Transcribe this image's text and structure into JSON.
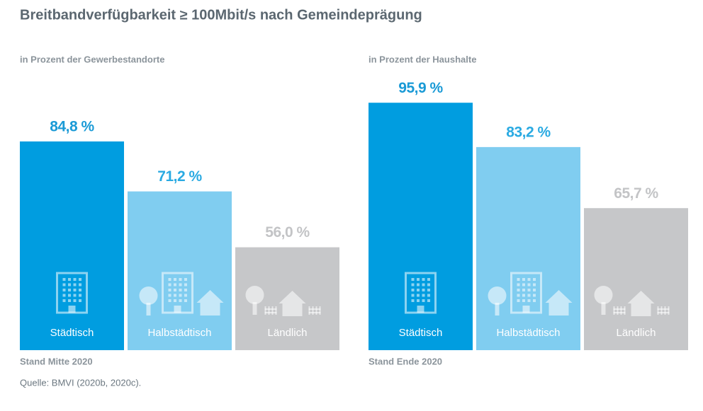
{
  "title": "Breitbandverfügbarkeit ≥ 100Mbit/s nach Gemeindeprägung",
  "source": "Quelle: BMVI (2020b, 2020c).",
  "chart_data": [
    {
      "type": "bar",
      "subtitle": "in Prozent der Gewerbestandorte",
      "note": "Stand Mitte 2020",
      "categories": [
        "Städtisch",
        "Halbstädtisch",
        "Ländlich"
      ],
      "values": [
        84.8,
        71.2,
        56.0
      ],
      "value_labels": [
        "84,8 %",
        "71,2 %",
        "56,0 %"
      ],
      "colors": [
        "#009de0",
        "#80cdf0",
        "#c6c7c9"
      ],
      "label_colors": [
        "#1a9ad6",
        "#2aaae2",
        "#c3c4c6"
      ],
      "ylim": [
        28,
        100
      ]
    },
    {
      "type": "bar",
      "subtitle": "in Prozent der Haushalte",
      "note": "Stand Ende 2020",
      "categories": [
        "Städtisch",
        "Halbstädtisch",
        "Ländlich"
      ],
      "values": [
        95.9,
        83.2,
        65.7
      ],
      "value_labels": [
        "95,9 %",
        "83,2 %",
        "65,7 %"
      ],
      "colors": [
        "#009de0",
        "#80cdf0",
        "#c6c7c9"
      ],
      "label_colors": [
        "#1a9ad6",
        "#2aaae2",
        "#c3c4c6"
      ],
      "ylim": [
        25,
        100
      ]
    }
  ]
}
